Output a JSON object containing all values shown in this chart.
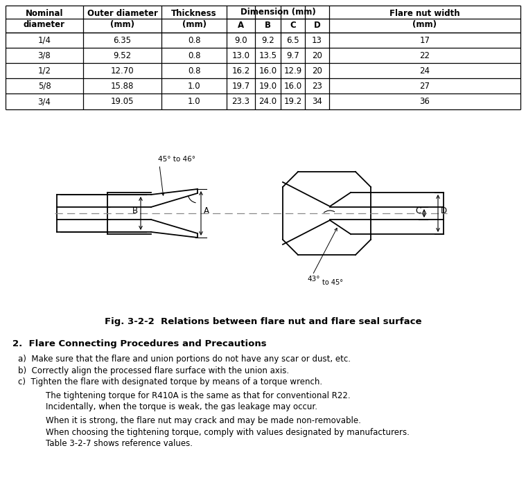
{
  "table": {
    "rows": [
      [
        "1/4",
        "6.35",
        "0.8",
        "9.0",
        "9.2",
        "6.5",
        "13",
        "17"
      ],
      [
        "3/8",
        "9.52",
        "0.8",
        "13.0",
        "13.5",
        "9.7",
        "20",
        "22"
      ],
      [
        "1/2",
        "12.70",
        "0.8",
        "16.2",
        "16.0",
        "12.9",
        "20",
        "24"
      ],
      [
        "5/8",
        "15.88",
        "1.0",
        "19.7",
        "19.0",
        "16.0",
        "23",
        "27"
      ],
      [
        "3/4",
        "19.05",
        "1.0",
        "23.3",
        "24.0",
        "19.2",
        "34",
        "36"
      ]
    ]
  },
  "figure_caption": "Fig. 3-2-2  Relations between flare nut and flare seal surface",
  "section_title": "2.  Flare Connecting Procedures and Precautions",
  "bullet_a": "a)  Make sure that the flare and union portions do not have any scar or dust, etc.",
  "bullet_b": "b)  Correctly align the processed flare surface with the union axis.",
  "bullet_c": "c)  Tighten the flare with designated torque by means of a torque wrench.",
  "sub_text_1a": "The tightening torque for R410A is the same as that for conventional R22.",
  "sub_text_1b": "Incidentally, when the torque is weak, the gas leakage may occur.",
  "sub_text_2a": "When it is strong, the flare nut may crack and may be made non-removable.",
  "sub_text_2b": "When choosing the tightening torque, comply with values designated by manufacturers.",
  "sub_text_2c": "Table 3-2-7 shows reference values.",
  "bg_color": "#ffffff",
  "line_color": "#000000"
}
